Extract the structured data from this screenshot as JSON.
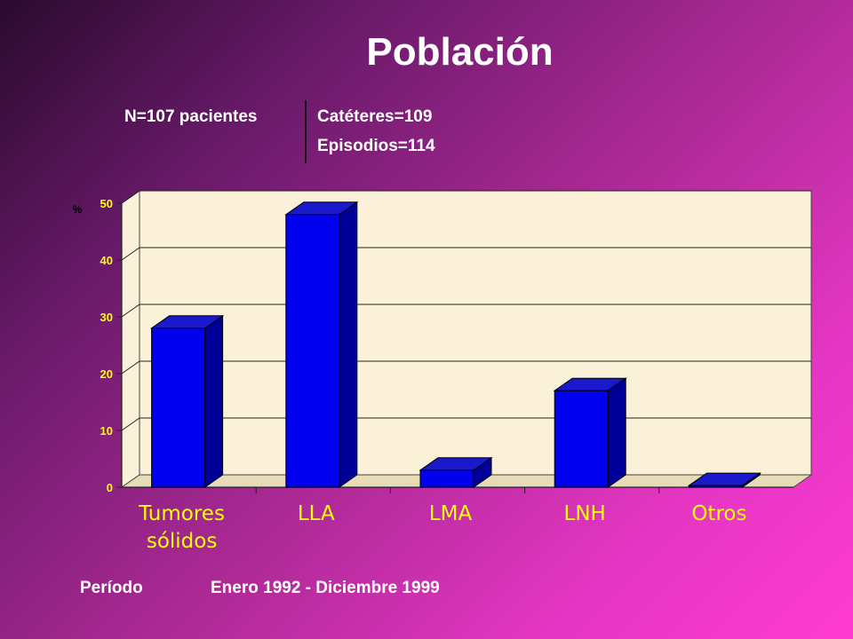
{
  "slide": {
    "title": "Población",
    "patients": "N=107 pacientes",
    "catheters": "Catéteres=109",
    "episodes": "Episodios=114",
    "period_label": "Período",
    "period_value": "Enero 1992 - Diciembre 1999"
  },
  "colors": {
    "bar_front": "#0000ee",
    "bar_side": "#000099",
    "bar_top": "#1a1acc",
    "plot_back": "#fbf1d8",
    "plot_floor": "#e8dcb8",
    "axis_text": "#ffff00",
    "category_text": "#ffff00"
  },
  "chart_data": {
    "type": "bar",
    "title": "",
    "ylabel": "%",
    "xlabel": "",
    "categories": [
      [
        "Tumores",
        "sólidos"
      ],
      [
        "LLA"
      ],
      [
        "LMA"
      ],
      [
        "LNH"
      ],
      [
        "Otros"
      ]
    ],
    "values": [
      28,
      48,
      3,
      17,
      0.3
    ],
    "ylim": [
      0,
      50
    ],
    "yticks": [
      0,
      10,
      20,
      30,
      40,
      50
    ],
    "grid": true,
    "legend": "none"
  }
}
